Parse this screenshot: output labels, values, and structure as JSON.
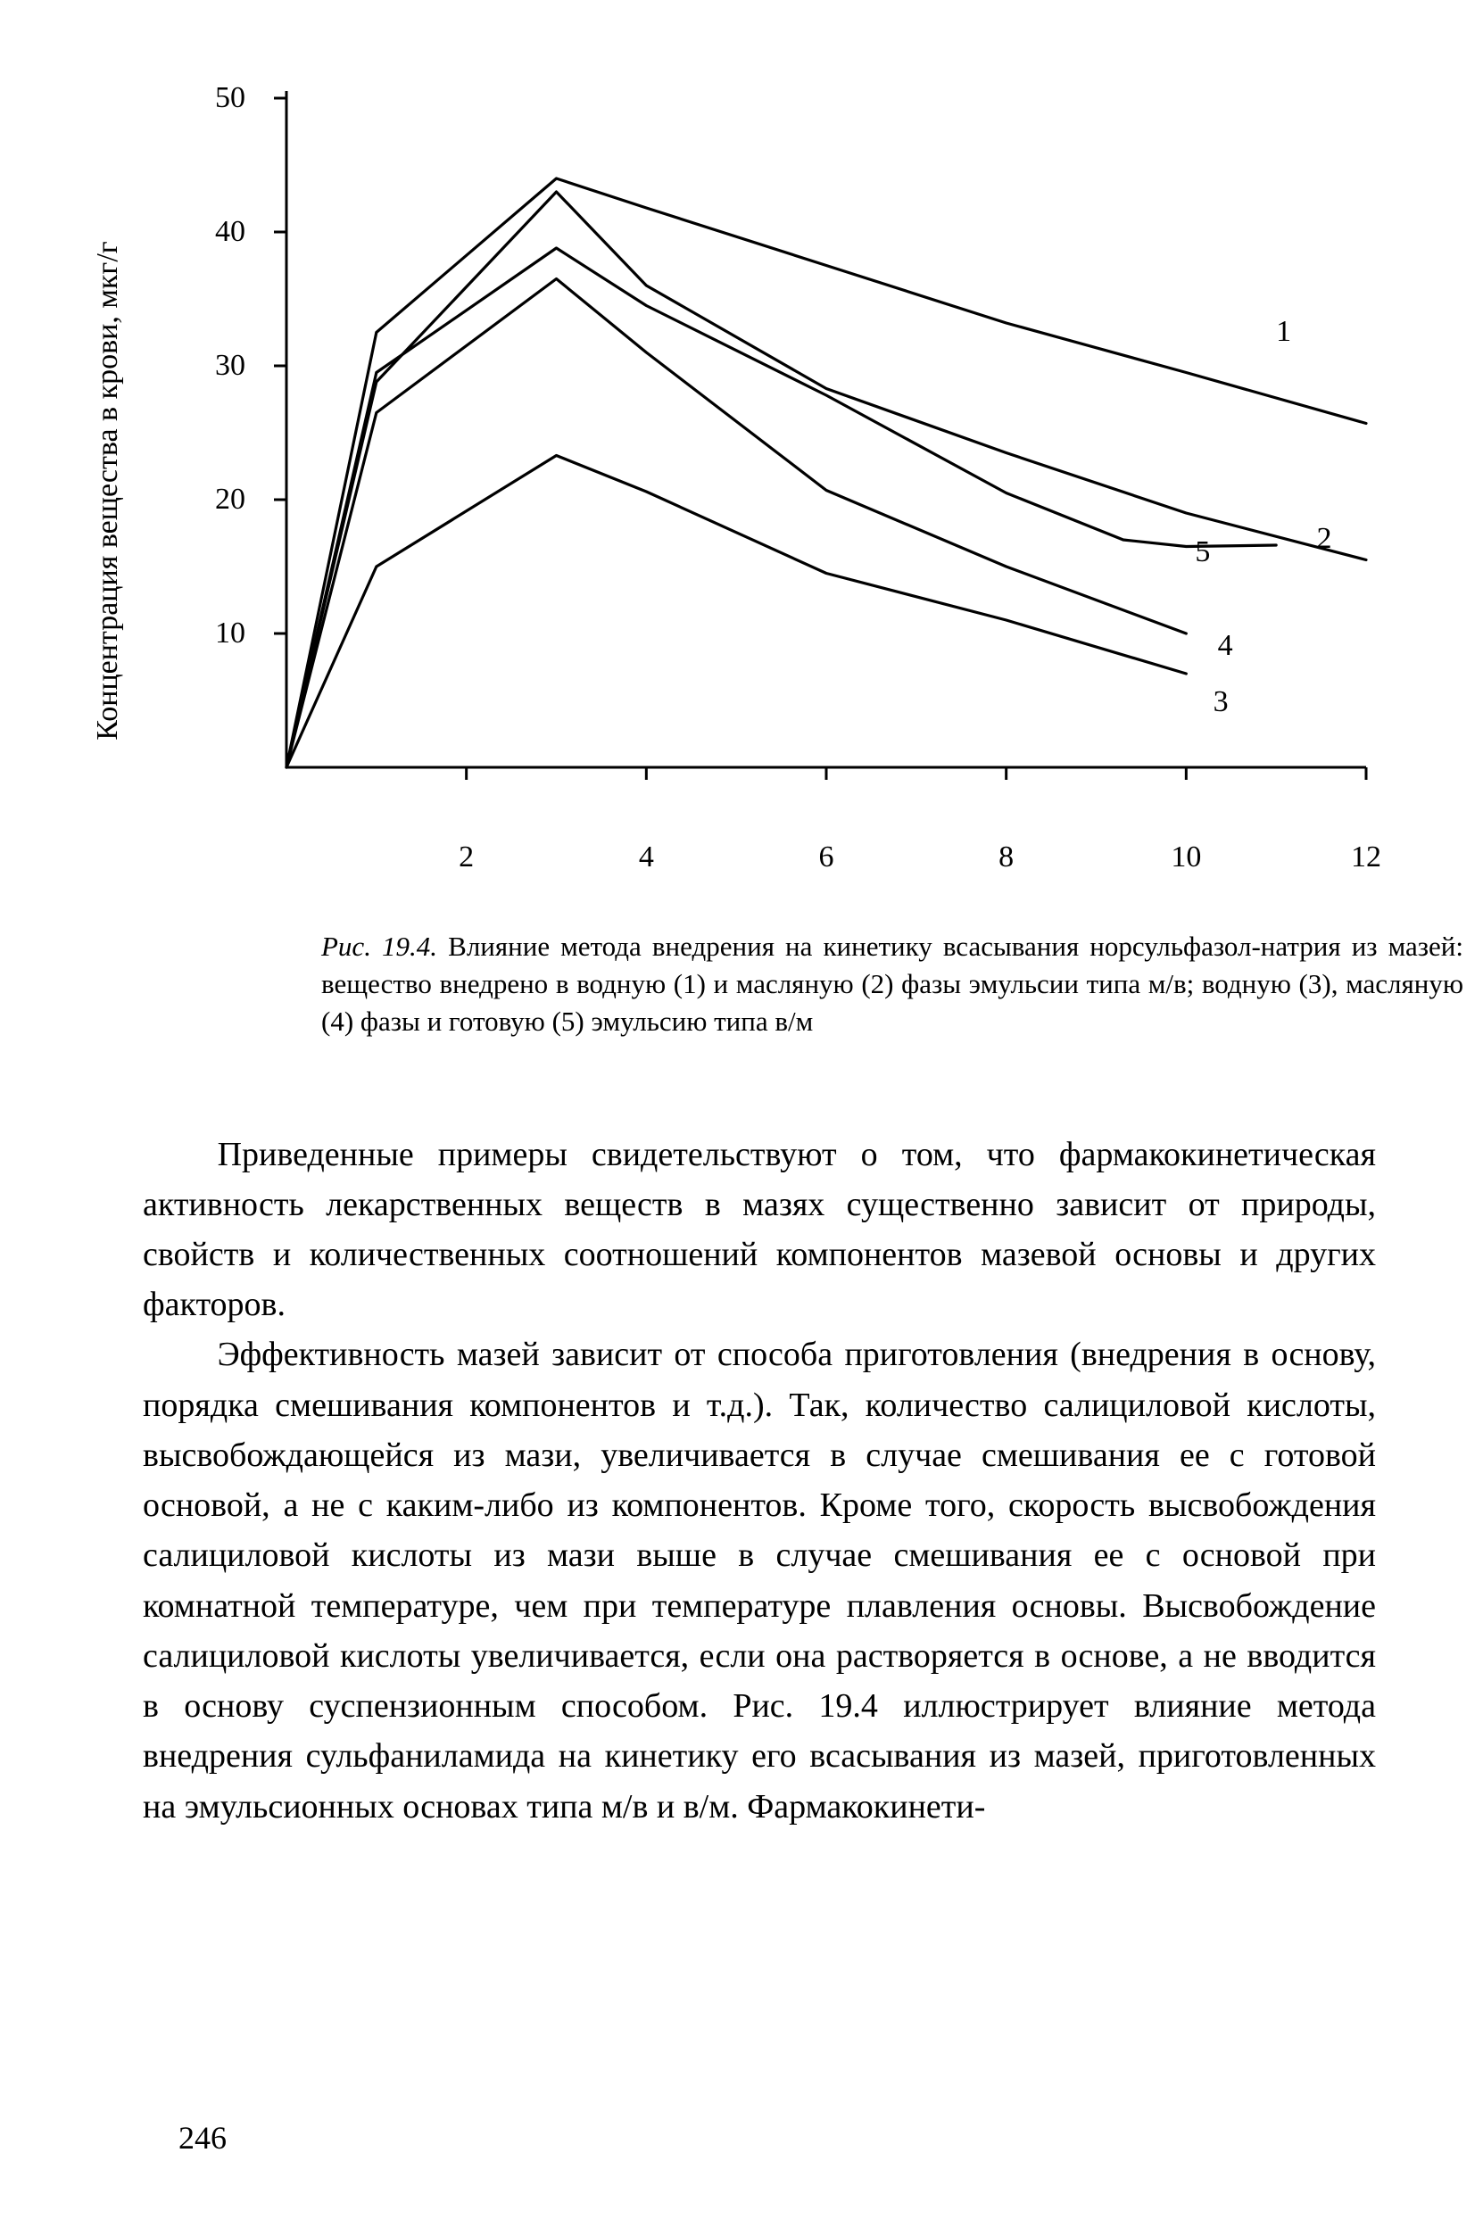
{
  "chart": {
    "type": "line",
    "ylabel": "Концентрация вещества в крови, мкг/г",
    "x_ticks": [
      2,
      4,
      6,
      8,
      10,
      12
    ],
    "y_ticks": [
      10,
      20,
      30,
      40,
      50
    ],
    "xlim": [
      0,
      12
    ],
    "ylim": [
      0,
      50
    ],
    "axis_color": "#000000",
    "line_width": 3.2,
    "background_color": "#ffffff",
    "label_fontsize": 34,
    "tick_fontsize": 34,
    "series": [
      {
        "name": "1",
        "color": "#000000",
        "label_xy": [
          11.0,
          32.7
        ],
        "points": [
          [
            0,
            0
          ],
          [
            1,
            32.5
          ],
          [
            3,
            44.0
          ],
          [
            4,
            41.8
          ],
          [
            6,
            37.5
          ],
          [
            8,
            33.2
          ],
          [
            10,
            29.5
          ],
          [
            12,
            25.7
          ]
        ]
      },
      {
        "name": "2",
        "color": "#000000",
        "label_xy": [
          11.45,
          17.2
        ],
        "points": [
          [
            0,
            0
          ],
          [
            1,
            28.8
          ],
          [
            3,
            43.0
          ],
          [
            4,
            36.0
          ],
          [
            6,
            28.3
          ],
          [
            8,
            23.5
          ],
          [
            10,
            19.0
          ],
          [
            12,
            15.5
          ]
        ]
      },
      {
        "name": "3",
        "color": "#000000",
        "label_xy": [
          10.3,
          5.0
        ],
        "points": [
          [
            0,
            0
          ],
          [
            1,
            15.0
          ],
          [
            3,
            23.3
          ],
          [
            4,
            20.6
          ],
          [
            6,
            14.5
          ],
          [
            8,
            11.0
          ],
          [
            10,
            7.0
          ]
        ]
      },
      {
        "name": "4",
        "color": "#000000",
        "label_xy": [
          10.35,
          9.2
        ],
        "points": [
          [
            0,
            0
          ],
          [
            1,
            26.5
          ],
          [
            3,
            36.5
          ],
          [
            4,
            31.0
          ],
          [
            6,
            20.7
          ],
          [
            8,
            15.0
          ],
          [
            10,
            10.0
          ]
        ]
      },
      {
        "name": "5",
        "color": "#000000",
        "label_xy": [
          10.1,
          16.2
        ],
        "points": [
          [
            0,
            0
          ],
          [
            1,
            29.5
          ],
          [
            3,
            38.8
          ],
          [
            4,
            34.5
          ],
          [
            6,
            27.8
          ],
          [
            8,
            20.5
          ],
          [
            9.3,
            17.0
          ],
          [
            10,
            16.5
          ],
          [
            11,
            16.6
          ]
        ]
      }
    ]
  },
  "caption": {
    "fignum": "Рис. 19.4.",
    "text": "Влияние метода внедрения на кинетику всасывания норсульфазол-натрия из мазей: вещество внедрено в водную (1) и масляную (2) фазы эмульсии типа м/в; водную (3), масляную (4) фазы и готовую (5) эмульсию типа в/м"
  },
  "body": {
    "p1": "Приведенные примеры свидетельствуют о том, что фармакокинетическая активность лекарственных веществ в мазях существенно зависит от природы, свойств и количественных соотношений компонентов мазевой основы и других факторов.",
    "p2": "Эффективность мазей зависит от способа приготовления (внедрения в основу, порядка смешивания компонентов и т.д.). Так, количество салициловой кислоты, высвобождающейся из мази, увеличивается в случае смешивания ее с готовой основой, а не с каким-либо из компонентов. Кроме того, скорость высвобождения салициловой кислоты из мази выше в случае смешивания ее с основой при комнатной температуре, чем при температуре плавления основы. Высвобождение салициловой кислоты увеличивается, если она растворяется в основе, а не вводится в основу суспензионным способом. Рис. 19.4 иллюстрирует влияние метода внедрения сульфаниламида на кинетику его всасывания из мазей, приготовленных на эмульсионных основах типа м/в и в/м. Фармакокинети-"
  },
  "page_number": "246"
}
